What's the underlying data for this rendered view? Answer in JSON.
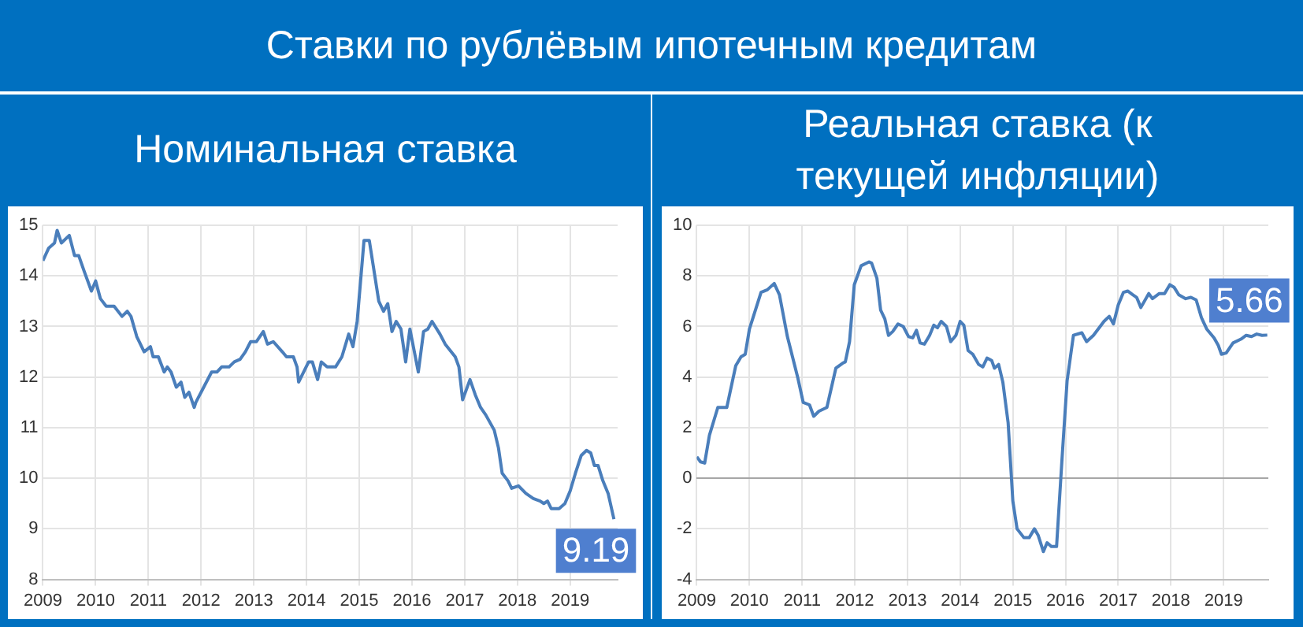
{
  "chart_data": [
    {
      "type": "line",
      "title": "Ставки по рублёвым ипотечным кредитам",
      "subtitle": "Номинальная ставка",
      "xlim": [
        2009,
        2019.9
      ],
      "xticks": [
        2009,
        2010,
        2011,
        2012,
        2013,
        2014,
        2015,
        2016,
        2017,
        2018,
        2019
      ],
      "ylim": [
        8,
        15
      ],
      "yticks": [
        8,
        9,
        10,
        11,
        12,
        13,
        14,
        15
      ],
      "grid": true,
      "series": [
        {
          "color": "#4a7ebb",
          "x": [
            2009.0,
            2009.11,
            2009.22,
            2009.27,
            2009.35,
            2009.5,
            2009.6,
            2009.68,
            2009.78,
            2009.92,
            2010.0,
            2010.09,
            2010.2,
            2010.35,
            2010.5,
            2010.6,
            2010.67,
            2010.78,
            2010.92,
            2011.04,
            2011.09,
            2011.19,
            2011.3,
            2011.36,
            2011.43,
            2011.53,
            2011.62,
            2011.69,
            2011.77,
            2011.87,
            2011.9,
            2012.2,
            2012.3,
            2012.39,
            2012.53,
            2012.63,
            2012.74,
            2012.84,
            2012.94,
            2013.05,
            2013.18,
            2013.26,
            2013.37,
            2013.54,
            2013.62,
            2013.75,
            2013.82,
            2013.85,
            2014.04,
            2014.11,
            2014.21,
            2014.28,
            2014.39,
            2014.55,
            2014.67,
            2014.8,
            2014.88,
            2014.96,
            2015.09,
            2015.19,
            2015.37,
            2015.46,
            2015.54,
            2015.62,
            2015.7,
            2015.79,
            2015.88,
            2015.96,
            2016.12,
            2016.22,
            2016.3,
            2016.38,
            2016.53,
            2016.63,
            2016.82,
            2016.89,
            2016.96,
            2017.1,
            2017.2,
            2017.3,
            2017.4,
            2017.56,
            2017.64,
            2017.71,
            2017.82,
            2017.89,
            2018.02,
            2018.16,
            2018.3,
            2018.43,
            2018.5,
            2018.57,
            2018.64,
            2018.79,
            2018.9,
            2019.0,
            2019.1,
            2019.21,
            2019.31,
            2019.39,
            2019.46,
            2019.53,
            2019.62,
            2019.72,
            2019.83
          ],
          "values": [
            14.3,
            14.55,
            14.65,
            14.9,
            14.65,
            14.8,
            14.4,
            14.4,
            14.1,
            13.7,
            13.9,
            13.55,
            13.4,
            13.4,
            13.2,
            13.3,
            13.2,
            12.8,
            12.5,
            12.6,
            12.4,
            12.4,
            12.1,
            12.2,
            12.1,
            11.8,
            11.9,
            11.6,
            11.7,
            11.4,
            11.5,
            12.1,
            12.1,
            12.2,
            12.2,
            12.3,
            12.35,
            12.5,
            12.7,
            12.7,
            12.9,
            12.65,
            12.7,
            12.5,
            12.4,
            12.4,
            12.2,
            11.9,
            12.3,
            12.3,
            11.95,
            12.3,
            12.2,
            12.2,
            12.4,
            12.85,
            12.6,
            13.1,
            14.7,
            14.7,
            13.5,
            13.3,
            13.45,
            12.9,
            13.1,
            12.95,
            12.3,
            12.95,
            12.1,
            12.9,
            12.95,
            13.1,
            12.85,
            12.65,
            12.4,
            12.2,
            11.55,
            11.95,
            11.65,
            11.4,
            11.25,
            10.95,
            10.6,
            10.1,
            9.95,
            9.8,
            9.85,
            9.7,
            9.6,
            9.55,
            9.5,
            9.55,
            9.4,
            9.4,
            9.5,
            9.75,
            10.1,
            10.45,
            10.55,
            10.5,
            10.25,
            10.25,
            9.95,
            9.7,
            9.19
          ]
        }
      ],
      "annotations": [
        {
          "text": "9.19",
          "x": 2019.83,
          "y": 9.19
        }
      ]
    },
    {
      "type": "line",
      "subtitle": "Реальная ставка (к текущей инфляции)",
      "xlim": [
        2009,
        2019.85
      ],
      "xticks": [
        2009,
        2010,
        2011,
        2012,
        2013,
        2014,
        2015,
        2016,
        2017,
        2018,
        2019
      ],
      "ylim": [
        -4,
        10
      ],
      "yticks": [
        -4,
        -2,
        0,
        2,
        4,
        6,
        8,
        10
      ],
      "grid": true,
      "series": [
        {
          "color": "#4a7ebb",
          "x": [
            2009.0,
            2009.07,
            2009.15,
            2009.24,
            2009.4,
            2009.57,
            2009.74,
            2009.84,
            2009.92,
            2010.0,
            2010.22,
            2010.34,
            2010.47,
            2010.57,
            2010.72,
            2010.92,
            2011.02,
            2011.14,
            2011.22,
            2011.32,
            2011.47,
            2011.64,
            2011.77,
            2011.82,
            2011.9,
            2011.99,
            2012.12,
            2012.27,
            2012.32,
            2012.42,
            2012.49,
            2012.57,
            2012.64,
            2012.72,
            2012.82,
            2012.92,
            2013.02,
            2013.1,
            2013.17,
            2013.24,
            2013.32,
            2013.42,
            2013.5,
            2013.57,
            2013.64,
            2013.74,
            2013.82,
            2013.92,
            2014.0,
            2014.07,
            2014.15,
            2014.24,
            2014.35,
            2014.43,
            2014.51,
            2014.6,
            2014.65,
            2014.73,
            2014.81,
            2014.91,
            2015.0,
            2015.08,
            2015.21,
            2015.31,
            2015.41,
            2015.48,
            2015.58,
            2015.65,
            2015.73,
            2015.83,
            2015.93,
            2016.03,
            2016.15,
            2016.31,
            2016.4,
            2016.53,
            2016.73,
            2016.83,
            2016.91,
            2017.0,
            2017.1,
            2017.18,
            2017.28,
            2017.35,
            2017.43,
            2017.58,
            2017.65,
            2017.78,
            2017.88,
            2017.98,
            2018.06,
            2018.15,
            2018.28,
            2018.38,
            2018.48,
            2018.58,
            2018.68,
            2018.82,
            2018.9,
            2018.96,
            2019.05,
            2019.18,
            2019.33,
            2019.43,
            2019.53,
            2019.63,
            2019.73,
            2019.83
          ],
          "values": [
            0.85,
            0.65,
            0.6,
            1.7,
            2.8,
            2.8,
            4.45,
            4.8,
            4.9,
            5.9,
            7.35,
            7.45,
            7.7,
            7.25,
            5.6,
            3.95,
            3.0,
            2.9,
            2.45,
            2.65,
            2.8,
            4.35,
            4.55,
            4.6,
            5.4,
            7.65,
            8.4,
            8.55,
            8.5,
            7.9,
            6.65,
            6.3,
            5.65,
            5.8,
            6.1,
            6.0,
            5.6,
            5.55,
            5.85,
            5.35,
            5.3,
            5.65,
            6.05,
            5.95,
            6.2,
            6.0,
            5.4,
            5.65,
            6.2,
            6.05,
            5.05,
            4.9,
            4.5,
            4.4,
            4.75,
            4.65,
            4.35,
            4.5,
            3.8,
            2.2,
            -0.9,
            -2.0,
            -2.35,
            -2.35,
            -2.0,
            -2.25,
            -2.9,
            -2.55,
            -2.7,
            -2.7,
            0.65,
            3.85,
            5.65,
            5.75,
            5.4,
            5.65,
            6.2,
            6.4,
            6.1,
            6.85,
            7.35,
            7.4,
            7.25,
            7.15,
            6.75,
            7.3,
            7.1,
            7.3,
            7.3,
            7.65,
            7.55,
            7.25,
            7.1,
            7.15,
            7.05,
            6.35,
            5.9,
            5.55,
            5.25,
            4.9,
            4.95,
            5.35,
            5.5,
            5.65,
            5.6,
            5.7,
            5.65,
            5.66
          ]
        }
      ],
      "annotations": [
        {
          "text": "5.66",
          "x": 2019.83,
          "y": 5.66
        }
      ]
    }
  ]
}
